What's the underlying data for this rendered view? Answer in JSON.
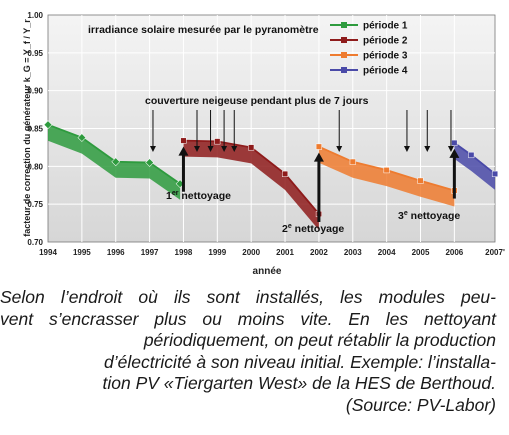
{
  "chart_data": {
    "type": "line",
    "title": "irradiance solaire mesurée par le pyranomètre",
    "ylabel": "facteur de correction du générateur k_G = Y_f / Y_r",
    "xlabel": "année",
    "ylim": [
      0.7,
      1.0
    ],
    "xlim": [
      1994,
      2007.2
    ],
    "grid": true,
    "legend_position": "top-right",
    "y_ticks": [
      "1.00",
      "0.95",
      "0.90",
      "0.85",
      "0.80",
      "0.75",
      "0.70"
    ],
    "x_ticks": [
      {
        "value": 1994,
        "label": "1994"
      },
      {
        "value": 1995,
        "label": "1995"
      },
      {
        "value": 1996,
        "label": "1996"
      },
      {
        "value": 1997,
        "label": "1997"
      },
      {
        "value": 1998,
        "label": "1998"
      },
      {
        "value": 1999,
        "label": "1999"
      },
      {
        "value": 2000,
        "label": "2000"
      },
      {
        "value": 2001,
        "label": "2001"
      },
      {
        "value": 2002,
        "label": "2002"
      },
      {
        "value": 2003,
        "label": "2003"
      },
      {
        "value": 2004,
        "label": "2004"
      },
      {
        "value": 2005,
        "label": "2005"
      },
      {
        "value": 2006,
        "label": "2006"
      },
      {
        "value": 2007.2,
        "label": "2007'"
      }
    ],
    "series": [
      {
        "name": "période 1",
        "color": "#2e9b3e",
        "points": [
          [
            1994.0,
            0.855
          ],
          [
            1995.0,
            0.838
          ],
          [
            1996.0,
            0.806
          ],
          [
            1997.0,
            0.805
          ],
          [
            1997.9,
            0.777
          ]
        ]
      },
      {
        "name": "période 2",
        "color": "#8e1b1b",
        "points": [
          [
            1998.0,
            0.834
          ],
          [
            1999.0,
            0.833
          ],
          [
            2000.0,
            0.825
          ],
          [
            2001.0,
            0.79
          ],
          [
            2002.0,
            0.737
          ]
        ]
      },
      {
        "name": "période 3",
        "color": "#ee7b2f",
        "points": [
          [
            2002.0,
            0.826
          ],
          [
            2003.0,
            0.806
          ],
          [
            2004.0,
            0.795
          ],
          [
            2005.0,
            0.781
          ],
          [
            2006.0,
            0.768
          ]
        ]
      },
      {
        "name": "période 4",
        "color": "#4a4aa8",
        "points": [
          [
            2006.0,
            0.831
          ],
          [
            2006.5,
            0.815
          ],
          [
            2007.2,
            0.79
          ]
        ]
      }
    ],
    "annotations": {
      "snow": "couverture neigeuse pendant plus de 7 jours",
      "clean1_num": "1",
      "clean1_sup": "er",
      "clean1_text": " nettoyage",
      "clean2_num": "2",
      "clean2_sup": "e",
      "clean2_text": " nettoyage",
      "clean3_num": "3",
      "clean3_sup": "e",
      "clean3_text": " nettoyage"
    },
    "snow_arrows_x": [
      1997.1,
      1998.4,
      1998.8,
      1999.2,
      1999.5,
      2002.6,
      2004.6,
      2005.2,
      2005.9
    ],
    "cleaning_arrows": [
      {
        "x": 1998.0,
        "from": 0.777,
        "to": 0.834
      },
      {
        "x": 2002.0,
        "from": 0.737,
        "to": 0.826
      },
      {
        "x": 2006.0,
        "from": 0.768,
        "to": 0.831
      }
    ]
  },
  "caption": {
    "lines": [
      "Selon l’endroit où ils sont installés, les modules peu-",
      "vent s’encrasser plus ou moins vite. En les nettoyant",
      "périodiquement, on peut rétablir la production",
      "d’électricité à son niveau initial. Exemple: l’installa-",
      "tion PV «Tiergarten West» de la HES de Berthoud.",
      "(Source: PV-Labor)"
    ]
  }
}
